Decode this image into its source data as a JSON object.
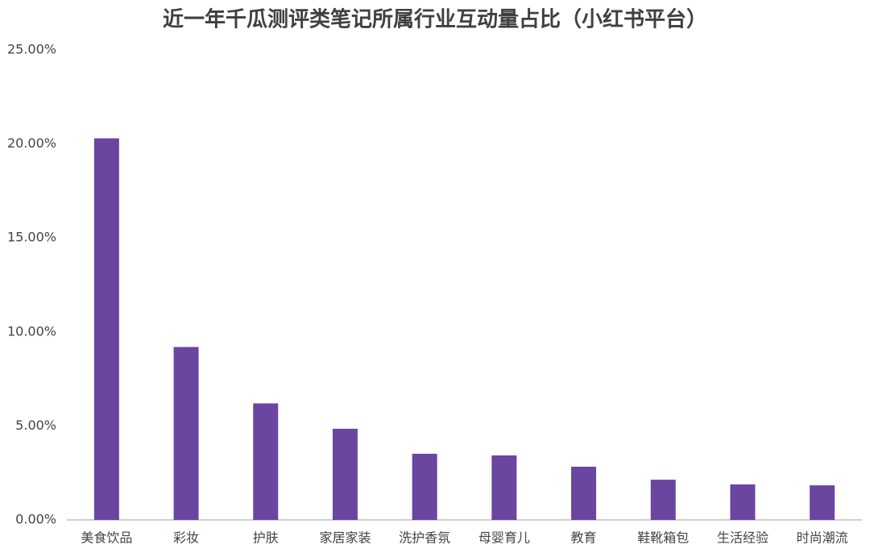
{
  "chart_data": {
    "type": "bar",
    "title": "近一年千瓜测评类笔记所属行业互动量占比（小红书平台）",
    "categories": [
      "美食饮品",
      "彩妆",
      "护肤",
      "家居家装",
      "洗护香氛",
      "母婴育儿",
      "教育",
      "鞋靴箱包",
      "生活经验",
      "时尚潮流"
    ],
    "values": [
      20.3,
      9.2,
      6.2,
      4.85,
      3.52,
      3.43,
      2.83,
      2.14,
      1.89,
      1.84
    ],
    "color": "#6a46a0",
    "ylim": [
      0,
      25
    ],
    "yticks": [
      {
        "value": 0,
        "label": "0.00%"
      },
      {
        "value": 5,
        "label": "5.00%"
      },
      {
        "value": 10,
        "label": "10.00%"
      },
      {
        "value": 15,
        "label": "15.00%"
      },
      {
        "value": 20,
        "label": "20.00%"
      },
      {
        "value": 25,
        "label": "25.00%"
      }
    ],
    "grid": false
  }
}
